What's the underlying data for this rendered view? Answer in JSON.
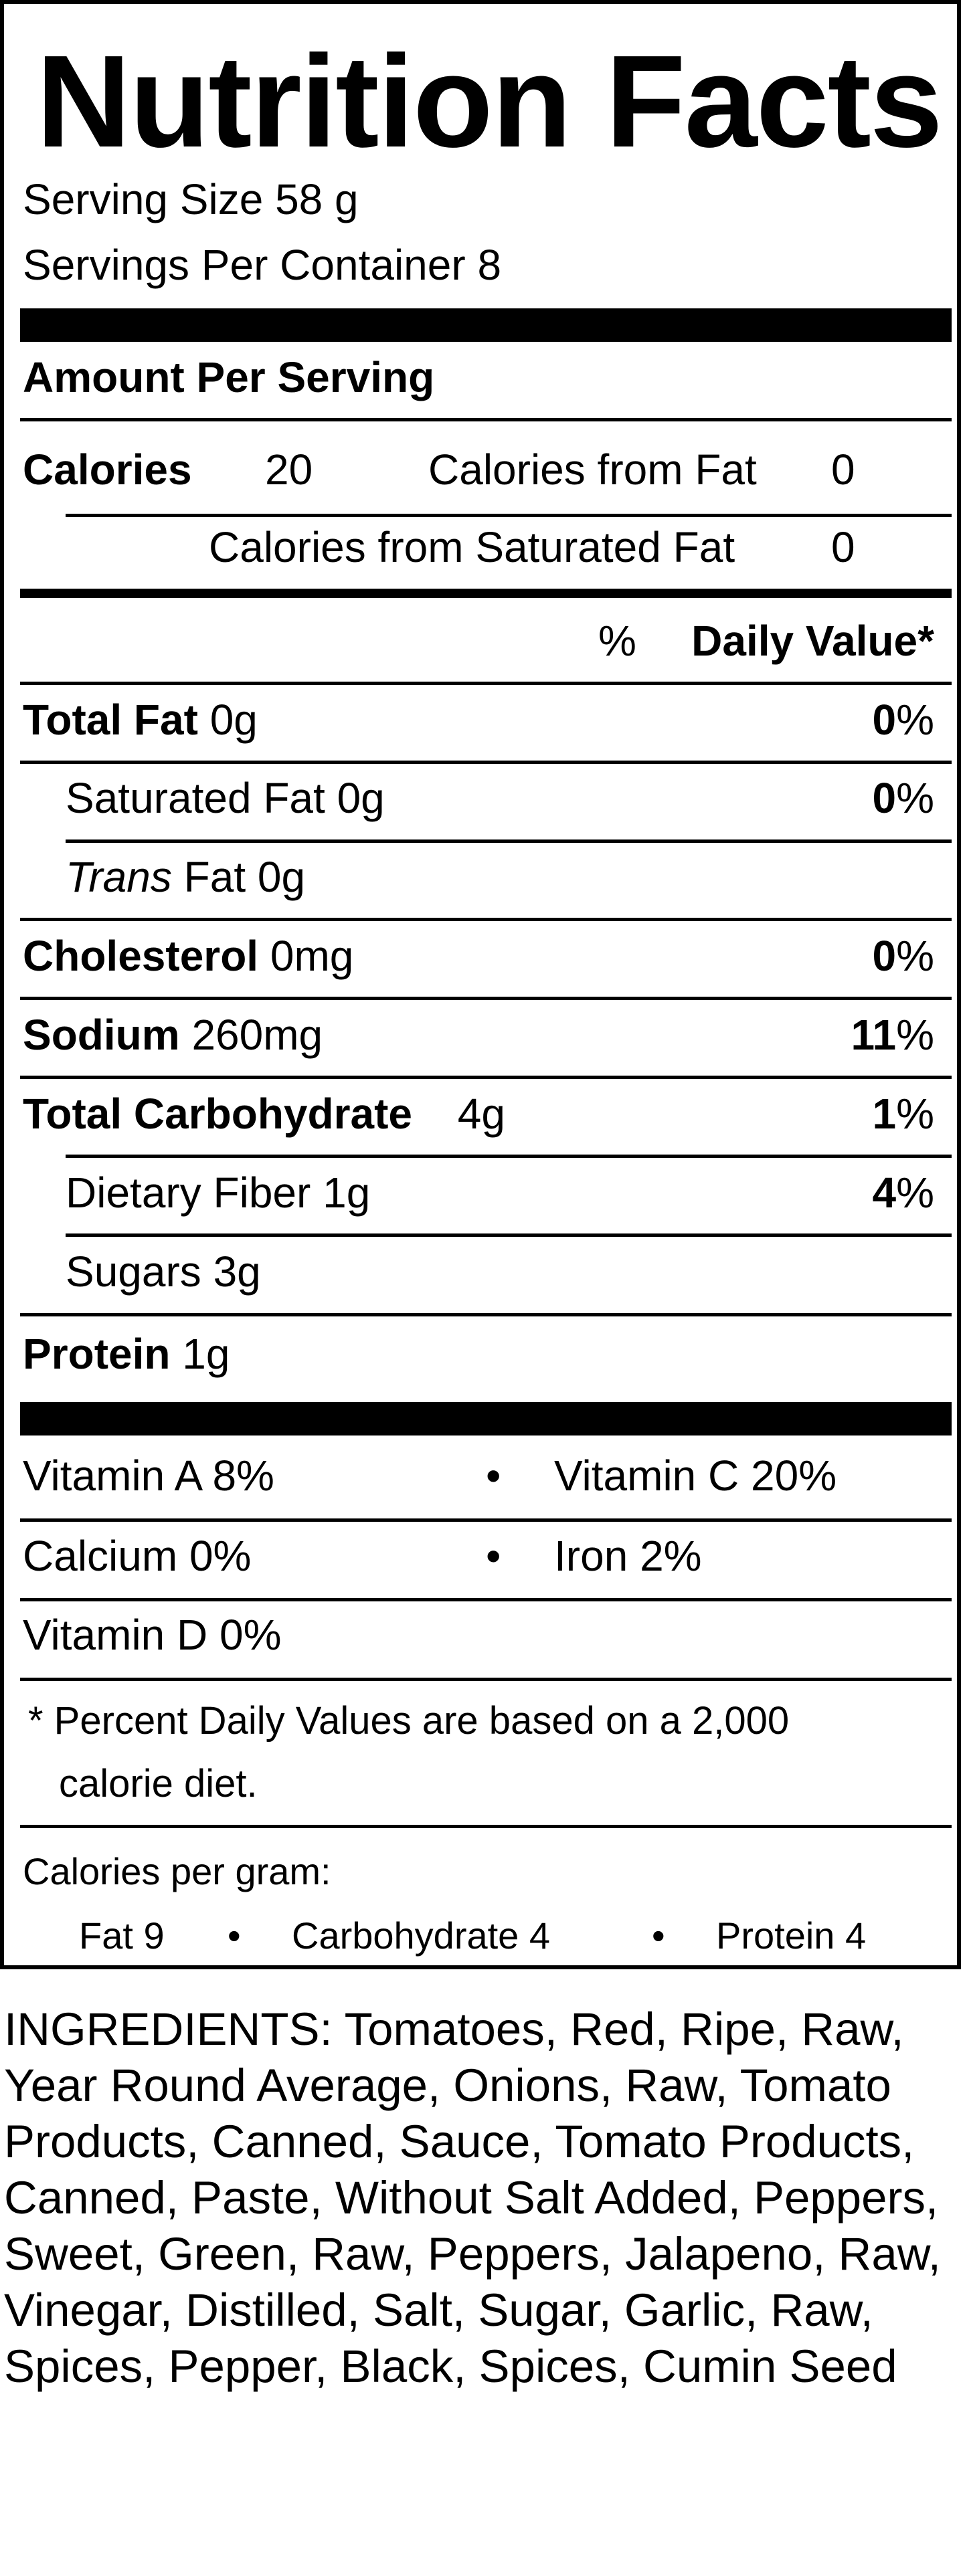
{
  "title": "Nutrition Facts",
  "serving_size": "Serving Size  58  g",
  "servings_per_container": "Servings Per Container  8",
  "amount_per_serving": "Amount Per Serving",
  "calories": {
    "label": "Calories",
    "value": "20",
    "from_fat_label": "Calories from Fat",
    "from_fat_value": "0",
    "from_sat_fat_label": "Calories from Saturated Fat",
    "from_sat_fat_value": "0"
  },
  "daily_value_header": {
    "pct": "%",
    "label": "Daily Value*"
  },
  "nutrients": {
    "total_fat": {
      "label": "Total Fat",
      "amount": "0g",
      "dv": "0",
      "pct": "%"
    },
    "saturated_fat": {
      "label": "Saturated Fat",
      "amount": "0g",
      "dv": "0",
      "pct": "%"
    },
    "trans_fat": {
      "label_italic": "Trans",
      "label": "Fat",
      "amount": "0g"
    },
    "cholesterol": {
      "label": "Cholesterol",
      "amount": "0mg",
      "dv": "0",
      "pct": "%"
    },
    "sodium": {
      "label": "Sodium",
      "amount": "260mg",
      "dv": "11",
      "pct": "%"
    },
    "total_carbohydrate": {
      "label": "Total Carbohydrate",
      "amount": "4g",
      "dv": "1",
      "pct": "%"
    },
    "dietary_fiber": {
      "label": "Dietary Fiber",
      "amount": "1g",
      "dv": "4",
      "pct": "%"
    },
    "sugars": {
      "label": "Sugars",
      "amount": "3g"
    },
    "protein": {
      "label": "Protein",
      "amount": "1g"
    }
  },
  "vitamins": {
    "vitamin_a": "Vitamin A  8%",
    "vitamin_c": "Vitamin C  20%",
    "calcium": "Calcium  0%",
    "iron": "Iron  2%",
    "vitamin_d": "Vitamin D  0%",
    "bullet": "•"
  },
  "footnote": {
    "line1": "* Percent Daily Values are based on a 2,000",
    "line2": "calorie diet."
  },
  "calories_per_gram": {
    "label": "Calories per gram:",
    "fat": "Fat 9",
    "carbohydrate": "Carbohydrate 4",
    "protein": "Protein 4",
    "bullet": "•"
  },
  "ingredients": "INGREDIENTS: Tomatoes, Red, Ripe, Raw, Year Round Average, Onions, Raw, Tomato Products, Canned, Sauce, Tomato Products, Canned, Paste, Without Salt Added, Peppers, Sweet, Green, Raw, Peppers, Jalapeno, Raw, Vinegar, Distilled, Salt, Sugar, Garlic, Raw, Spices, Pepper, Black, Spices, Cumin Seed"
}
